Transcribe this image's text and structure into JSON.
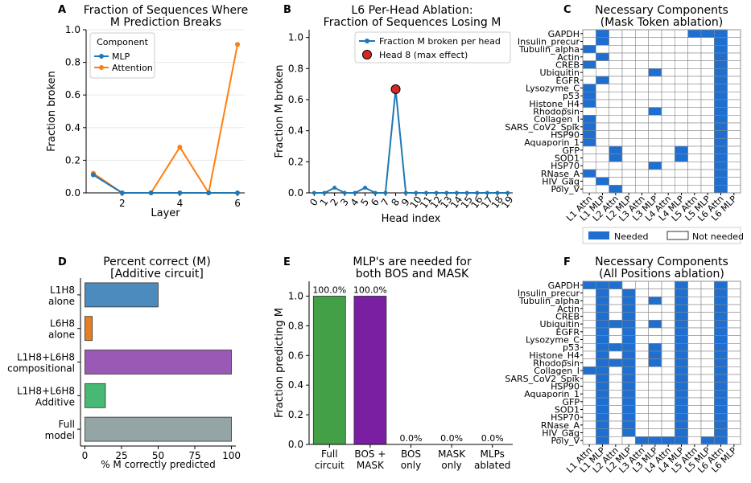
{
  "colors": {
    "mlp": "#1f77b4",
    "attention": "#ff7f0e",
    "needed": "#1f6fd1",
    "head_marker": "#d62728"
  },
  "panel_a": {
    "letter": "A",
    "title": [
      "Fraction of Sequences Where",
      "M Prediction Breaks"
    ],
    "xlabel": "Layer",
    "ylabel": "Fraction broken",
    "legend_title": "Component",
    "chart_data": {
      "type": "line",
      "x": [
        1,
        2,
        3,
        4,
        5,
        6
      ],
      "xlim": [
        0.75,
        6.25
      ],
      "ylim": [
        0,
        1.0
      ],
      "xticks": [
        2,
        4,
        6
      ],
      "yticks": [
        0.0,
        0.2,
        0.4,
        0.6,
        0.8,
        1.0
      ],
      "series": [
        {
          "name": "MLP",
          "values": [
            0.11,
            0,
            0,
            0,
            0,
            0
          ]
        },
        {
          "name": "Attention",
          "values": [
            0.12,
            0,
            0,
            0.28,
            0,
            0.91
          ]
        }
      ]
    }
  },
  "panel_b": {
    "letter": "B",
    "title": [
      "L6 Per-Head Ablation:",
      "Fraction of Sequences Losing M"
    ],
    "xlabel": "Head index",
    "ylabel": "Fraction M broken",
    "chart_data": {
      "type": "line",
      "x": [
        0,
        1,
        2,
        3,
        4,
        5,
        6,
        7,
        8,
        9,
        10,
        11,
        12,
        13,
        14,
        15,
        16,
        17,
        18,
        19
      ],
      "xlim": [
        -0.5,
        19.5
      ],
      "ylim": [
        0,
        1.05
      ],
      "yticks": [
        0.0,
        0.2,
        0.4,
        0.6,
        0.8,
        1.0
      ],
      "series": [
        {
          "name": "Fraction M broken per head",
          "values": [
            0,
            0,
            0.033,
            0,
            0,
            0.033,
            0,
            0,
            0.667,
            0,
            0,
            0,
            0,
            0,
            0,
            0,
            0,
            0,
            0,
            0
          ]
        }
      ],
      "highlight": {
        "name": "Head 8 (max effect)",
        "x": 8,
        "y": 0.667
      }
    }
  },
  "panel_c": {
    "letter": "C",
    "title": [
      "Necessary Components",
      "(Mask Token ablation)"
    ],
    "legend": {
      "needed": "Needed",
      "not_needed": "Not needed"
    },
    "chart_data": {
      "type": "heatmap",
      "columns": [
        "L1 Attn",
        "L1 MLP",
        "L2 Attn",
        "L2 MLP",
        "L3 Attn",
        "L3 MLP",
        "L4 Attn",
        "L4 MLP",
        "L5 Attn",
        "L5 MLP",
        "L6 Attn",
        "L6 MLP"
      ],
      "rows": [
        "GAPDH",
        "Insulin_precur",
        "Tubulin_alpha",
        "Actin",
        "CREB",
        "Ubiquitin",
        "EGFR",
        "Lysozyme_C",
        "p53",
        "Histone_H4",
        "Rhodopsin",
        "Collagen_I",
        "SARS_CoV2_Spik",
        "HSP90",
        "Aquaporin_1",
        "GFP",
        "SOD1",
        "HSP70",
        "RNase_A",
        "HIV_Gag",
        "Poly_V"
      ],
      "values": [
        [
          0,
          1,
          0,
          0,
          0,
          0,
          0,
          0,
          1,
          1,
          1,
          0
        ],
        [
          0,
          1,
          0,
          0,
          0,
          0,
          0,
          0,
          0,
          0,
          1,
          0
        ],
        [
          1,
          0,
          0,
          0,
          0,
          0,
          0,
          0,
          0,
          0,
          1,
          0
        ],
        [
          0,
          1,
          0,
          0,
          0,
          0,
          0,
          0,
          0,
          0,
          1,
          0
        ],
        [
          1,
          0,
          0,
          0,
          0,
          0,
          0,
          0,
          0,
          0,
          1,
          0
        ],
        [
          0,
          0,
          0,
          0,
          0,
          1,
          0,
          0,
          0,
          0,
          1,
          0
        ],
        [
          0,
          1,
          0,
          0,
          0,
          0,
          0,
          0,
          0,
          0,
          1,
          0
        ],
        [
          1,
          0,
          0,
          0,
          0,
          0,
          0,
          0,
          0,
          0,
          1,
          0
        ],
        [
          1,
          0,
          0,
          0,
          0,
          0,
          0,
          0,
          0,
          0,
          1,
          0
        ],
        [
          1,
          0,
          0,
          0,
          0,
          0,
          0,
          0,
          0,
          0,
          1,
          0
        ],
        [
          0,
          0,
          0,
          0,
          0,
          1,
          0,
          0,
          0,
          0,
          1,
          0
        ],
        [
          1,
          0,
          0,
          0,
          0,
          0,
          0,
          0,
          0,
          0,
          1,
          0
        ],
        [
          1,
          0,
          0,
          0,
          0,
          0,
          0,
          0,
          0,
          0,
          1,
          0
        ],
        [
          1,
          0,
          0,
          0,
          0,
          0,
          0,
          0,
          0,
          0,
          1,
          0
        ],
        [
          1,
          0,
          0,
          0,
          0,
          0,
          0,
          0,
          0,
          0,
          1,
          0
        ],
        [
          0,
          0,
          1,
          0,
          0,
          0,
          0,
          1,
          0,
          0,
          1,
          0
        ],
        [
          0,
          0,
          1,
          0,
          0,
          0,
          0,
          1,
          0,
          0,
          1,
          0
        ],
        [
          0,
          0,
          0,
          0,
          0,
          1,
          0,
          0,
          0,
          0,
          1,
          0
        ],
        [
          1,
          0,
          0,
          0,
          0,
          0,
          0,
          0,
          0,
          0,
          1,
          0
        ],
        [
          0,
          1,
          0,
          0,
          0,
          0,
          0,
          0,
          0,
          0,
          1,
          0
        ],
        [
          0,
          0,
          1,
          0,
          0,
          0,
          0,
          0,
          0,
          0,
          1,
          0
        ]
      ]
    }
  },
  "panel_d": {
    "letter": "D",
    "title": [
      "Percent correct (M)",
      "[Additive circuit]"
    ],
    "xlabel": "% M correctly predicted",
    "chart_data": {
      "type": "bar",
      "orientation": "horizontal",
      "categories": [
        [
          "L1H8",
          "alone"
        ],
        [
          "L6H8",
          "alone"
        ],
        [
          "L1H8+L6H8",
          "compositional"
        ],
        [
          "L1H8+L6H8",
          "Additive"
        ],
        [
          "Full",
          "model"
        ]
      ],
      "values": [
        50,
        5,
        100,
        14,
        100
      ],
      "xlim": [
        -3,
        103
      ],
      "xticks": [
        0,
        25,
        50,
        75,
        100
      ],
      "colors": [
        "#4b8bbe",
        "#e67e22",
        "#9b59b6",
        "#48b974",
        "#95a5a6"
      ]
    }
  },
  "panel_e": {
    "letter": "E",
    "title": [
      "MLP's are needed for",
      "both BOS and MASK"
    ],
    "ylabel": "Fraction predicting M",
    "chart_data": {
      "type": "bar",
      "categories": [
        [
          "Full",
          "circuit"
        ],
        [
          "BOS +",
          "MASK"
        ],
        [
          "BOS",
          "only"
        ],
        [
          "MASK",
          "only"
        ],
        [
          "MLPs",
          "ablated"
        ]
      ],
      "values": [
        1.0,
        1.0,
        0,
        0,
        0
      ],
      "labels": [
        "100.0%",
        "100.0%",
        "0.0%",
        "0.0%",
        "0.0%"
      ],
      "ylim": [
        0,
        1.1
      ],
      "yticks": [
        0.0,
        0.2,
        0.4,
        0.6,
        0.8,
        1.0
      ],
      "colors": [
        "#43a047",
        "#7b1fa2",
        "#7b1fa2",
        "#7b1fa2",
        "#7b1fa2"
      ]
    }
  },
  "panel_f": {
    "letter": "F",
    "title": [
      "Necessary Components",
      "(All Positions ablation)"
    ],
    "chart_data": {
      "type": "heatmap",
      "columns": [
        "L1 Attn",
        "L1 MLP",
        "L2 Attn",
        "L2 MLP",
        "L3 Attn",
        "L3 MLP",
        "L4 Attn",
        "L4 MLP",
        "L5 Attn",
        "L5 MLP",
        "L6 Attn",
        "L6 MLP"
      ],
      "rows": [
        "GAPDH",
        "Insulin_precur",
        "Tubulin_alpha",
        "Actin",
        "CREB",
        "Ubiquitin",
        "EGFR",
        "Lysozyme_C",
        "p53",
        "Histone_H4",
        "Rhodopsin",
        "Collagen_I",
        "SARS_CoV2_Spik",
        "HSP90",
        "Aquaporin_1",
        "GFP",
        "SOD1",
        "HSP70",
        "RNase_A",
        "HIV_Gag",
        "Poly_V"
      ],
      "values": [
        [
          1,
          1,
          1,
          0,
          0,
          0,
          0,
          1,
          0,
          0,
          1,
          0
        ],
        [
          0,
          1,
          0,
          1,
          0,
          0,
          0,
          1,
          0,
          0,
          1,
          0
        ],
        [
          0,
          1,
          0,
          1,
          0,
          1,
          0,
          1,
          0,
          0,
          1,
          0
        ],
        [
          0,
          1,
          0,
          1,
          0,
          0,
          0,
          1,
          0,
          0,
          1,
          0
        ],
        [
          0,
          1,
          0,
          1,
          0,
          0,
          0,
          1,
          0,
          0,
          1,
          0
        ],
        [
          0,
          1,
          1,
          1,
          0,
          1,
          0,
          1,
          0,
          0,
          1,
          0
        ],
        [
          0,
          1,
          0,
          1,
          0,
          0,
          0,
          1,
          0,
          0,
          1,
          0
        ],
        [
          0,
          1,
          0,
          1,
          0,
          0,
          0,
          1,
          0,
          0,
          1,
          0
        ],
        [
          0,
          1,
          1,
          1,
          0,
          1,
          0,
          1,
          0,
          0,
          1,
          0
        ],
        [
          0,
          1,
          0,
          1,
          0,
          1,
          0,
          1,
          0,
          0,
          1,
          0
        ],
        [
          0,
          1,
          1,
          1,
          0,
          1,
          0,
          1,
          0,
          0,
          1,
          0
        ],
        [
          1,
          1,
          0,
          1,
          0,
          0,
          0,
          1,
          0,
          0,
          1,
          0
        ],
        [
          0,
          1,
          0,
          1,
          0,
          0,
          0,
          1,
          0,
          0,
          1,
          0
        ],
        [
          0,
          1,
          0,
          1,
          0,
          0,
          0,
          1,
          0,
          0,
          1,
          0
        ],
        [
          0,
          1,
          0,
          1,
          0,
          0,
          0,
          1,
          0,
          0,
          1,
          0
        ],
        [
          0,
          1,
          0,
          1,
          0,
          0,
          0,
          1,
          0,
          0,
          1,
          0
        ],
        [
          0,
          1,
          0,
          1,
          0,
          0,
          0,
          1,
          0,
          0,
          1,
          0
        ],
        [
          0,
          1,
          0,
          1,
          0,
          0,
          0,
          1,
          0,
          0,
          1,
          0
        ],
        [
          0,
          1,
          0,
          1,
          0,
          0,
          0,
          1,
          0,
          0,
          1,
          0
        ],
        [
          0,
          1,
          0,
          1,
          0,
          0,
          0,
          1,
          0,
          0,
          1,
          0
        ],
        [
          0,
          1,
          0,
          0,
          1,
          1,
          1,
          1,
          0,
          1,
          1,
          0
        ]
      ]
    }
  }
}
